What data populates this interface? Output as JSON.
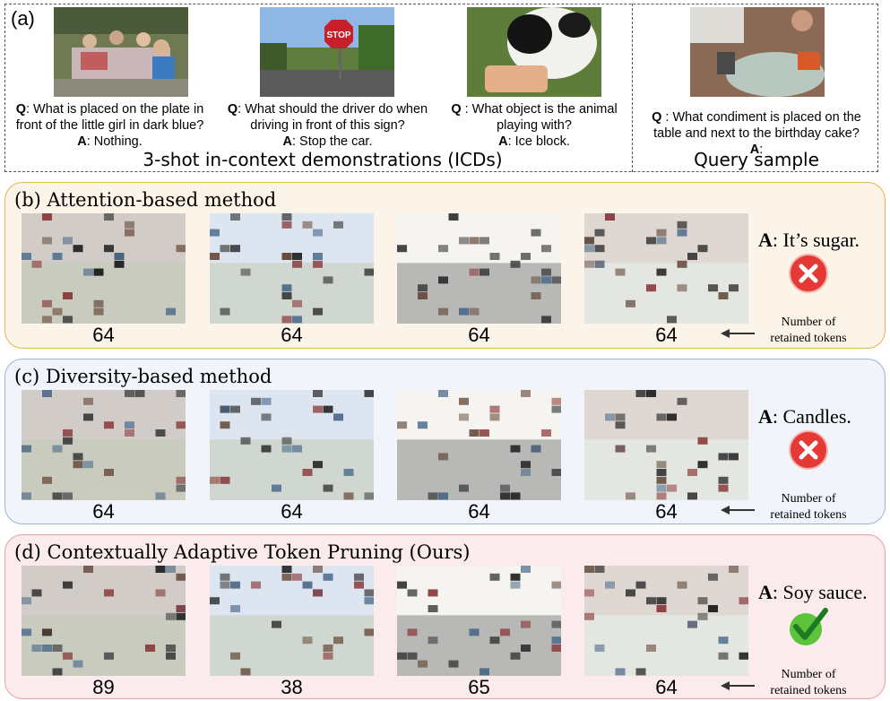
{
  "panel_a": {
    "label": "(a)",
    "demos": [
      {
        "q_prefix": "Q",
        "q_line1": ": What is placed on the plate in",
        "q_line2": "front of the little girl in dark blue?",
        "a_prefix": "A",
        "a_text": ": Nothing."
      },
      {
        "q_prefix": "Q",
        "q_line1": ": What should the driver do when",
        "q_line2": "driving in front of this sign?",
        "a_prefix": "A",
        "a_text": ": Stop the car."
      },
      {
        "q_prefix": "Q",
        "q_line1": " : What object is the animal",
        "q_line2": "playing with?",
        "a_prefix": "A",
        "a_text": ": Ice block."
      }
    ],
    "query": {
      "q_prefix": "Q",
      "q_line1": " : What condiment is placed on the",
      "q_line2": "table and next to the birthday cake?",
      "a_prefix": "A",
      "a_text": ":"
    },
    "icd_caption": "3-shot in-context demonstrations (ICDs)",
    "query_caption": "Query sample",
    "stop_sign_text": "STOP"
  },
  "panels": [
    {
      "title": "(b) Attention-based method",
      "counts": [
        "64",
        "64",
        "64",
        "64"
      ],
      "answer_prefix": "A",
      "answer_text": ": It’s sugar.",
      "result": "wrong",
      "note_line1": "Number of",
      "note_line2": "retained tokens"
    },
    {
      "title": "(c) Diversity-based method",
      "counts": [
        "64",
        "64",
        "64",
        "64"
      ],
      "answer_prefix": "A",
      "answer_text": ": Candles.",
      "result": "wrong",
      "note_line1": "Number of",
      "note_line2": "retained tokens"
    },
    {
      "title": "(d) Contextually Adaptive Token Pruning (Ours)",
      "counts": [
        "89",
        "38",
        "65",
        "64"
      ],
      "answer_prefix": "A",
      "answer_text": ": Soy sauce.",
      "result": "correct",
      "note_line1": "Number of",
      "note_line2": "retained tokens"
    }
  ],
  "colors": {
    "wrong": "#e53935",
    "correct": "#5cc43a",
    "panel_b_border": "#e9b44a",
    "panel_c_border": "#9fb2d6",
    "panel_d_border": "#e5a0a8"
  }
}
